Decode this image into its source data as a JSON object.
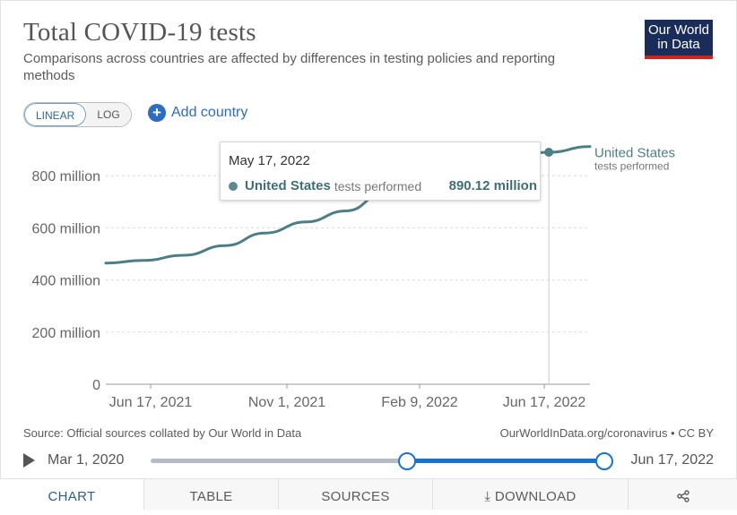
{
  "header": {
    "title": "Total COVID-19 tests",
    "subtitle": "Comparisons across countries are affected by differences in testing policies and reporting methods",
    "logo_line1": "Our World",
    "logo_line2": "in Data"
  },
  "controls": {
    "linear_label": "LINEAR",
    "log_label": "LOG",
    "add_country_label": "Add country"
  },
  "tooltip": {
    "date": "May 17, 2022",
    "country": "United States",
    "metric": "tests performed",
    "value": "890.12 million"
  },
  "chart_data": {
    "type": "line",
    "x_ticks": [
      "Jun 17, 2021",
      "Nov 1, 2021",
      "Feb 9, 2022",
      "Jun 17, 2022"
    ],
    "y_ticks": [
      "0",
      "200 million",
      "400 million",
      "600 million",
      "800 million"
    ],
    "ylim": [
      0,
      920000000
    ],
    "xlim": [
      "2021-06-17",
      "2022-06-17"
    ],
    "grid": "horizontal-dashed",
    "legend": "inline-right",
    "series": [
      {
        "name": "United States",
        "sublabel": "tests performed",
        "color": "#4c7f85",
        "points": [
          {
            "x": "2021-06-17",
            "y": 465000000
          },
          {
            "x": "2021-07-15",
            "y": 475000000
          },
          {
            "x": "2021-08-15",
            "y": 495000000
          },
          {
            "x": "2021-09-15",
            "y": 532000000
          },
          {
            "x": "2021-10-15",
            "y": 580000000
          },
          {
            "x": "2021-11-15",
            "y": 623000000
          },
          {
            "x": "2021-12-15",
            "y": 665000000
          },
          {
            "x": "2022-01-15",
            "y": 740000000
          },
          {
            "x": "2022-02-09",
            "y": 795000000
          },
          {
            "x": "2022-03-15",
            "y": 840000000
          },
          {
            "x": "2022-04-15",
            "y": 868000000
          },
          {
            "x": "2022-05-17",
            "y": 890120000
          },
          {
            "x": "2022-06-17",
            "y": 912000000
          }
        ]
      }
    ],
    "highlight": {
      "x": "2022-05-17",
      "y": 890120000
    }
  },
  "footer": {
    "source": "Source: Official sources collated by Our World in Data",
    "license": "OurWorldInData.org/coronavirus • CC BY"
  },
  "timeline": {
    "start_label": "Mar 1, 2020",
    "end_label": "Jun 17, 2022",
    "range_start_fraction": 0.565,
    "range_end_fraction": 1.0
  },
  "tabs": [
    {
      "label": "CHART"
    },
    {
      "label": "TABLE"
    },
    {
      "label": "SOURCES"
    },
    {
      "label": "DOWNLOAD"
    },
    {
      "label": ""
    }
  ]
}
